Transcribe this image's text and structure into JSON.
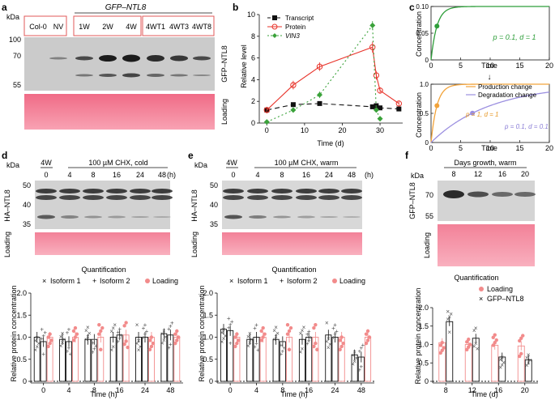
{
  "figure": {
    "panel_letters": [
      "a",
      "b",
      "c",
      "d",
      "e",
      "f"
    ]
  },
  "panel_a": {
    "kda_label": "kDa",
    "header": "GFP–NTL8",
    "lanes": [
      "Col-0",
      "NV",
      "1W",
      "2W",
      "4W",
      "4WT1",
      "4WT3",
      "4WT8"
    ],
    "markers": [
      "100",
      "70",
      "55"
    ],
    "blot_label": "GFP–NTL8",
    "loading_label": "Loading"
  },
  "panel_b": {
    "legend": [
      "Transcript",
      "Protein",
      "VIN3"
    ],
    "chart_data": {
      "type": "line",
      "title": "",
      "xlabel": "Time (d)",
      "ylabel": "Relative level",
      "xlim": [
        -2,
        36
      ],
      "ylim": [
        0,
        10
      ],
      "xticks": [
        0,
        10,
        20,
        30
      ],
      "yticks": [
        0,
        2,
        4,
        6,
        8,
        10
      ],
      "series": [
        {
          "name": "Transcript",
          "color": "#111111",
          "dash": "6,4",
          "x": [
            0,
            7,
            14,
            28,
            29,
            30,
            35
          ],
          "y": [
            1.2,
            1.7,
            1.8,
            1.5,
            1.6,
            1.4,
            1.3
          ],
          "err": [
            0.2,
            0.2,
            0.15,
            0.2,
            0.2,
            0.2,
            0.2
          ]
        },
        {
          "name": "Protein",
          "color": "#e8332a",
          "dash": "",
          "x": [
            0,
            7,
            14,
            28,
            29,
            30,
            35
          ],
          "y": [
            1.2,
            3.5,
            5.2,
            7.0,
            4.4,
            3.0,
            1.8
          ],
          "err": [
            0.3,
            0.4,
            0.4,
            0.5,
            0.4,
            0.3,
            0.2
          ]
        },
        {
          "name": "VIN3",
          "color": "#3aa23a",
          "dash": "2,3",
          "x": [
            0,
            7,
            14,
            28,
            29,
            30
          ],
          "y": [
            0.1,
            1.2,
            2.6,
            9.0,
            1.2,
            0.4
          ],
          "err": [
            0.1,
            0.2,
            0.3,
            0.4,
            0.2,
            0.1
          ]
        }
      ]
    }
  },
  "panel_c": {
    "top": {
      "chart_data": {
        "type": "line",
        "xlabel": "Time",
        "ylabel": "Concentration",
        "xlim": [
          0,
          20
        ],
        "ylim": [
          0,
          0.1
        ],
        "xticks": [
          0,
          5,
          10,
          15,
          20
        ],
        "yticks": [
          "0",
          "0.05",
          "0.10"
        ],
        "annotation": "p = 0.1, d = 1",
        "curve": {
          "p": 0.1,
          "d": 1,
          "color": "#2e9e3a"
        },
        "marker_x": 1
      }
    },
    "bottom": {
      "legend": [
        "Production change",
        "Degradation change"
      ],
      "chart_data": {
        "type": "line",
        "xlabel": "Time",
        "ylabel": "Concentration",
        "xlim": [
          0,
          20
        ],
        "ylim": [
          0,
          1.0
        ],
        "xticks": [
          0,
          5,
          10,
          15,
          20
        ],
        "yticks": [
          "0",
          "0.5",
          "1.0"
        ],
        "curves": [
          {
            "name": "Production change",
            "p": 1,
            "d": 1,
            "color": "#f2a33a",
            "label": "p = 1, d = 1"
          },
          {
            "name": "Degradation change",
            "p": 0.1,
            "d": 0.1,
            "color": "#9b8fe0",
            "label": "p = 0.1, d = 0.1"
          }
        ],
        "markers_x": [
          1,
          7
        ]
      }
    }
  },
  "panel_d": {
    "kda_label": "kDa",
    "group_label": "4W",
    "header": "100 µM CHX, cold",
    "lanes": [
      "0",
      "4",
      "8",
      "16",
      "24",
      "48"
    ],
    "unit": "(h)",
    "markers": [
      "50",
      "40",
      "35"
    ],
    "blot_label": "HA–NTL8",
    "loading_label": "Loading",
    "quant_title": "Quantification",
    "legend": [
      "Isoform 1",
      "Isoform 2",
      "Loading"
    ],
    "chart_data": {
      "type": "bar",
      "categories": [
        "0",
        "4",
        "8",
        "16",
        "24",
        "48"
      ],
      "xlabel": "Time (h)",
      "ylabel": "Relative protein concentration",
      "ylim": [
        0,
        2.0
      ],
      "yticks": [
        "0",
        "0.5",
        "1.0",
        "1.5",
        "2.0"
      ],
      "series": [
        {
          "name": "Isoform 1",
          "values": [
            1.0,
            0.95,
            0.95,
            1.0,
            1.0,
            1.08
          ]
        },
        {
          "name": "Isoform 2",
          "values": [
            0.9,
            0.9,
            0.95,
            1.05,
            1.0,
            1.05
          ]
        },
        {
          "name": "Loading",
          "values": [
            1.0,
            1.0,
            1.0,
            1.05,
            1.0,
            1.0
          ]
        }
      ]
    }
  },
  "panel_e": {
    "kda_label": "kDa",
    "group_label": "4W",
    "header": "100 µM CHX, warm",
    "lanes": [
      "0",
      "4",
      "8",
      "16",
      "24",
      "48"
    ],
    "unit": "(h)",
    "markers": [
      "50",
      "40",
      "35"
    ],
    "blot_label": "HA–NTL8",
    "loading_label": "Loading",
    "quant_title": "Quantification",
    "legend": [
      "Isoform 1",
      "Isoform 2",
      "Loading"
    ],
    "chart_data": {
      "type": "bar",
      "categories": [
        "0",
        "4",
        "8",
        "16",
        "24",
        "48"
      ],
      "xlabel": "Time (h)",
      "ylabel": "Relative protein concentration",
      "ylim": [
        0,
        2.0
      ],
      "yticks": [
        "0",
        "0.5",
        "1.0",
        "1.5",
        "2.0"
      ],
      "series": [
        {
          "name": "Isoform 1",
          "values": [
            1.18,
            0.95,
            0.95,
            0.95,
            1.05,
            0.6
          ]
        },
        {
          "name": "Isoform 2",
          "values": [
            1.15,
            1.0,
            0.9,
            1.0,
            1.0,
            0.55
          ]
        },
        {
          "name": "Loading",
          "values": [
            1.0,
            1.0,
            1.0,
            1.0,
            1.0,
            1.0
          ]
        }
      ]
    }
  },
  "panel_f": {
    "kda_label": "kDa",
    "header": "Days growth, warm",
    "lanes": [
      "8",
      "12",
      "16",
      "20"
    ],
    "markers": [
      "70",
      "55"
    ],
    "blot_label": "GFP–NTL8",
    "loading_label": "Loading",
    "quant_title": "Quantification",
    "legend": [
      "Loading",
      "GFP–NTL8"
    ],
    "chart_data": {
      "type": "bar",
      "categories": [
        "8",
        "12",
        "16",
        "20"
      ],
      "xlabel": "Time (d)",
      "ylabel": "Relative protein concentration",
      "ylim": [
        0,
        2.0
      ],
      "yticks": [
        "0",
        "0.5",
        "1.0",
        "1.5",
        "2.0"
      ],
      "series": [
        {
          "name": "Loading",
          "values": [
            1.05,
            1.0,
            0.98,
            0.96
          ]
        },
        {
          "name": "GFP–NTL8",
          "values": [
            1.62,
            1.17,
            0.66,
            0.58
          ]
        }
      ]
    }
  }
}
